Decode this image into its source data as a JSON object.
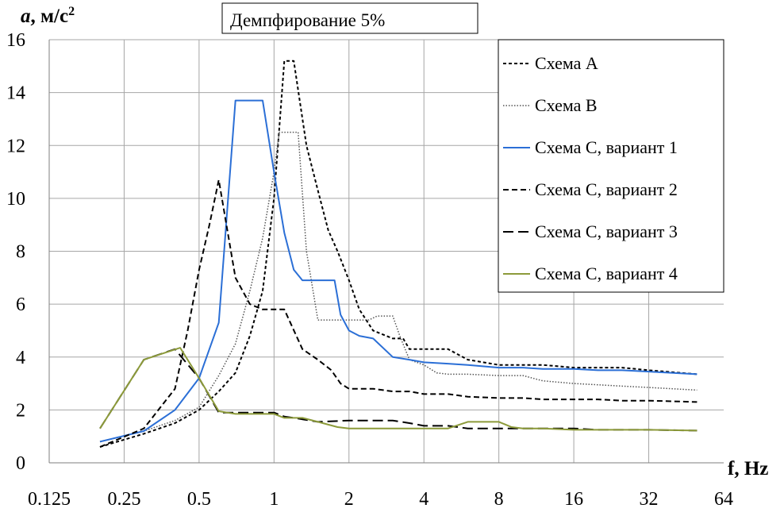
{
  "chart_data": {
    "type": "line",
    "title": "Демпфирование 5%",
    "ylabel_main": "a",
    "ylabel_units": ", м/с",
    "ylabel_exp": "2",
    "xlabel": "f, Hz",
    "x_scale": "log2",
    "xlim": [
      0.125,
      64
    ],
    "ylim": [
      0,
      16
    ],
    "x_ticks": [
      "0.125",
      "0.25",
      "0.5",
      "1",
      "2",
      "4",
      "8",
      "16",
      "32",
      "64"
    ],
    "x_tick_values": [
      0.125,
      0.25,
      0.5,
      1,
      2,
      4,
      8,
      16,
      32,
      64
    ],
    "y_ticks": [
      "0",
      "2",
      "4",
      "6",
      "8",
      "10",
      "12",
      "14",
      "16"
    ],
    "y_tick_values": [
      0,
      2,
      4,
      6,
      8,
      10,
      12,
      14,
      16
    ],
    "grid": true,
    "legend_position": "top-right",
    "series": [
      {
        "name": "Схема А",
        "color": "#000000",
        "dash": "4,3",
        "width": 2,
        "x": [
          0.2,
          0.3,
          0.4,
          0.5,
          0.6,
          0.7,
          0.8,
          0.9,
          1.0,
          1.1,
          1.2,
          1.35,
          1.5,
          1.65,
          1.8,
          2.0,
          2.2,
          2.5,
          3.0,
          3.3,
          3.5,
          4.0,
          5.0,
          6.0,
          8.0,
          10.0,
          12.0,
          16.0,
          20.0,
          25.0,
          32.0,
          50.0
        ],
        "y": [
          0.6,
          1.1,
          1.5,
          2.0,
          2.7,
          3.4,
          4.8,
          6.5,
          10.0,
          15.2,
          15.2,
          12.0,
          10.3,
          8.8,
          8.0,
          6.9,
          5.8,
          5.0,
          4.7,
          4.7,
          4.3,
          4.3,
          4.3,
          3.9,
          3.7,
          3.7,
          3.7,
          3.6,
          3.6,
          3.6,
          3.5,
          3.35
        ]
      },
      {
        "name": "Схема В",
        "color": "#555555",
        "dash": "1.5,2",
        "width": 1.5,
        "x": [
          0.2,
          0.3,
          0.4,
          0.5,
          0.6,
          0.7,
          0.8,
          0.9,
          1.0,
          1.05,
          1.15,
          1.25,
          1.35,
          1.5,
          1.65,
          2.0,
          2.4,
          2.6,
          3.0,
          3.2,
          3.5,
          4.0,
          4.5,
          5.0,
          6.0,
          8.0,
          10.0,
          12.0,
          16.0,
          20.0,
          25.0,
          32.0,
          50.0
        ],
        "y": [
          0.8,
          1.2,
          1.6,
          2.1,
          3.3,
          4.5,
          6.5,
          8.5,
          11.0,
          12.5,
          12.5,
          12.5,
          8.0,
          5.4,
          5.4,
          5.4,
          5.4,
          5.55,
          5.55,
          4.8,
          3.9,
          3.7,
          3.4,
          3.35,
          3.35,
          3.3,
          3.3,
          3.1,
          3.0,
          2.95,
          2.9,
          2.85,
          2.75
        ]
      },
      {
        "name": "Схема С, вариант 1",
        "color": "#2b6fd6",
        "dash": "",
        "width": 2,
        "x": [
          0.2,
          0.3,
          0.4,
          0.5,
          0.6,
          0.7,
          0.8,
          0.9,
          1.0,
          1.1,
          1.2,
          1.3,
          1.5,
          1.75,
          1.85,
          2.0,
          2.2,
          2.5,
          3.0,
          3.5,
          4.0,
          5.0,
          6.0,
          8.0,
          10.0,
          12.0,
          16.0,
          20.0,
          25.0,
          32.0,
          50.0
        ],
        "y": [
          0.8,
          1.2,
          2.0,
          3.2,
          5.3,
          13.7,
          13.7,
          13.7,
          11.0,
          8.7,
          7.3,
          6.9,
          6.9,
          6.9,
          5.6,
          5.0,
          4.8,
          4.7,
          4.0,
          3.9,
          3.8,
          3.75,
          3.7,
          3.6,
          3.6,
          3.55,
          3.55,
          3.5,
          3.5,
          3.45,
          3.35
        ]
      },
      {
        "name": "Схема С, вариант 2",
        "color": "#000000",
        "dash": "7,4",
        "width": 2,
        "x": [
          0.2,
          0.3,
          0.4,
          0.45,
          0.5,
          0.55,
          0.6,
          0.7,
          0.8,
          0.9,
          1.0,
          1.1,
          1.3,
          1.5,
          1.7,
          1.85,
          2.0,
          2.5,
          3.0,
          3.5,
          4.0,
          5.0,
          6.0,
          8.0,
          10.0,
          12.0,
          16.0,
          20.0,
          25.0,
          32.0,
          50.0
        ],
        "y": [
          0.6,
          1.3,
          2.8,
          5.0,
          7.3,
          9.0,
          10.7,
          7.0,
          6.0,
          5.8,
          5.8,
          5.8,
          4.3,
          3.9,
          3.5,
          3.0,
          2.8,
          2.8,
          2.7,
          2.7,
          2.6,
          2.6,
          2.5,
          2.45,
          2.45,
          2.4,
          2.4,
          2.4,
          2.35,
          2.35,
          2.3
        ]
      },
      {
        "name": "Схема С, вариант 3",
        "color": "#000000",
        "dash": "13,6",
        "width": 2,
        "x": [
          0.2,
          0.3,
          0.4,
          0.5,
          0.6,
          0.7,
          0.8,
          0.9,
          1.0,
          1.1,
          1.2,
          1.5,
          2.0,
          2.5,
          3.0,
          3.5,
          4.0,
          5.0,
          6.0,
          8.0,
          10.0,
          12.0,
          16.0,
          20.0,
          25.0,
          32.0,
          50.0
        ],
        "y": [
          1.3,
          3.9,
          4.3,
          3.2,
          1.9,
          1.9,
          1.9,
          1.9,
          1.9,
          1.75,
          1.7,
          1.55,
          1.6,
          1.6,
          1.6,
          1.5,
          1.4,
          1.4,
          1.3,
          1.3,
          1.3,
          1.3,
          1.3,
          1.25,
          1.25,
          1.25,
          1.22
        ]
      },
      {
        "name": "Схема С, вариант 4",
        "color": "#8c9a3a",
        "dash": "",
        "width": 2,
        "x": [
          0.2,
          0.3,
          0.42,
          0.5,
          0.6,
          0.7,
          0.8,
          0.9,
          1.0,
          1.1,
          1.3,
          1.5,
          1.8,
          2.0,
          3.0,
          4.0,
          5.0,
          6.0,
          7.0,
          8.0,
          9.0,
          10.0,
          12.0,
          16.0,
          20.0,
          32.0,
          50.0
        ],
        "y": [
          1.3,
          3.9,
          4.35,
          3.2,
          1.95,
          1.85,
          1.85,
          1.85,
          1.85,
          1.7,
          1.7,
          1.55,
          1.35,
          1.3,
          1.3,
          1.3,
          1.3,
          1.55,
          1.55,
          1.55,
          1.35,
          1.3,
          1.3,
          1.25,
          1.25,
          1.25,
          1.22
        ]
      }
    ]
  }
}
